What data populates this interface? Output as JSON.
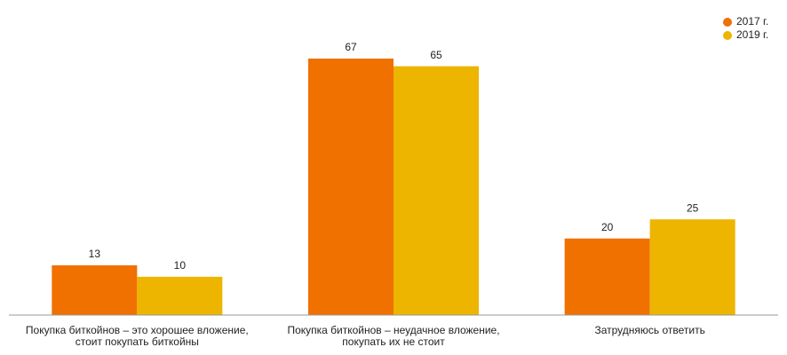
{
  "chart_data": {
    "type": "bar",
    "categories": [
      "Покупка биткойнов – это хорошее вложение, стоит покупать биткойны",
      "Покупка биткойнов – неудачное вложение, покупать их не стоит",
      "Затрудняюсь ответить"
    ],
    "series": [
      {
        "name": "2017 г.",
        "color": "#f07000",
        "values": [
          13,
          67,
          20
        ]
      },
      {
        "name": "2019 г.",
        "color": "#edb400",
        "values": [
          10,
          65,
          25
        ]
      }
    ],
    "legend": "top-right"
  }
}
